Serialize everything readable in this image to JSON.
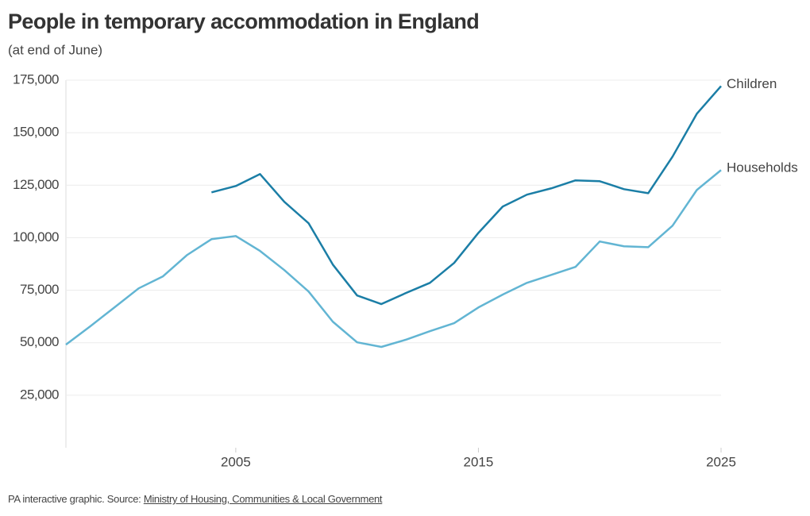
{
  "chart_data": {
    "type": "line",
    "title": "People in temporary accommodation in England",
    "subtitle": "(at end of June)",
    "source_prefix": "PA interactive graphic. Source:",
    "source_link": "Ministry of Housing, Communities & Local Government",
    "x": [
      1998,
      1999,
      2000,
      2001,
      2002,
      2003,
      2004,
      2005,
      2006,
      2007,
      2008,
      2009,
      2010,
      2011,
      2012,
      2013,
      2014,
      2015,
      2016,
      2017,
      2018,
      2019,
      2020,
      2021,
      2022,
      2023,
      2024,
      2025
    ],
    "series": [
      {
        "name": "Children",
        "color": "#1b7ea6",
        "values": [
          null,
          null,
          null,
          null,
          null,
          null,
          121600,
          124600,
          130300,
          117100,
          106900,
          87200,
          72500,
          68400,
          73600,
          78500,
          88000,
          102300,
          114800,
          120500,
          123500,
          127300,
          126900,
          123100,
          121200,
          138600,
          159000,
          172200
        ]
      },
      {
        "name": "Households",
        "color": "#62b5d3",
        "values": [
          49100,
          57800,
          66800,
          75900,
          81600,
          91800,
          99300,
          100800,
          93700,
          84600,
          74400,
          60000,
          50200,
          48000,
          51400,
          55500,
          59300,
          66800,
          72900,
          78500,
          82300,
          86100,
          98200,
          95900,
          95500,
          105700,
          122700,
          132200
        ]
      }
    ],
    "xlim": [
      1998,
      2025
    ],
    "xticks": [
      2005,
      2015,
      2025
    ],
    "ylim": [
      0,
      175000
    ],
    "yticks": [
      {
        "value": 25000,
        "label": "25,000"
      },
      {
        "value": 50000,
        "label": "50,000"
      },
      {
        "value": 75000,
        "label": "75,000"
      },
      {
        "value": 100000,
        "label": "100,000"
      },
      {
        "value": 125000,
        "label": "125,000"
      },
      {
        "value": 150000,
        "label": "150,000"
      },
      {
        "value": 175000,
        "label": "175,000"
      }
    ],
    "grid": true
  }
}
